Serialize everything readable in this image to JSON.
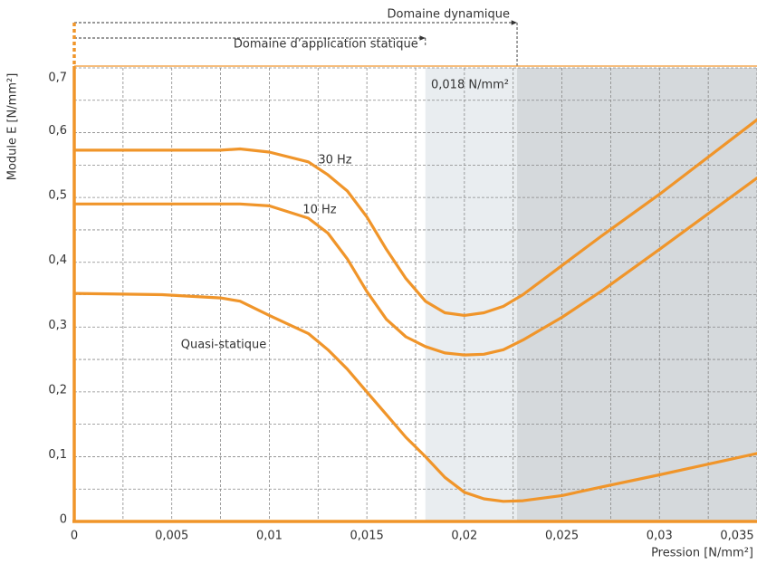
{
  "chart_data": {
    "type": "line",
    "xlabel": "Pression [N/mm²]",
    "ylabel": "Module E [N/mm²]",
    "x": [
      0,
      0.0045,
      0.0075,
      0.0085,
      0.01,
      0.012,
      0.013,
      0.014,
      0.015,
      0.016,
      0.017,
      0.018,
      0.019,
      0.02,
      0.021,
      0.022,
      0.023,
      0.025,
      0.027,
      0.03,
      0.035
    ],
    "series": [
      {
        "name": "30 Hz",
        "color": "#f0952a",
        "values": [
          0.573,
          0.573,
          0.573,
          0.575,
          0.57,
          0.555,
          0.535,
          0.51,
          0.47,
          0.42,
          0.375,
          0.34,
          0.322,
          0.318,
          0.322,
          0.332,
          0.35,
          0.395,
          0.44,
          0.505,
          0.62
        ]
      },
      {
        "name": "10 Hz",
        "color": "#f0952a",
        "values": [
          0.49,
          0.49,
          0.49,
          0.49,
          0.487,
          0.468,
          0.445,
          0.405,
          0.355,
          0.312,
          0.285,
          0.27,
          0.26,
          0.257,
          0.258,
          0.265,
          0.28,
          0.315,
          0.355,
          0.42,
          0.53
        ]
      },
      {
        "name": "Quasi-statique",
        "color": "#f0952a",
        "values": [
          0.352,
          0.35,
          0.345,
          0.34,
          0.318,
          0.29,
          0.265,
          0.235,
          0.2,
          0.165,
          0.13,
          0.1,
          0.068,
          0.045,
          0.035,
          0.031,
          0.032,
          0.04,
          0.053,
          0.072,
          0.105
        ]
      }
    ],
    "xlim": [
      0,
      0.035
    ],
    "ylim": [
      0,
      0.7
    ],
    "xticks": [
      0,
      {
        "value": 0.005,
        "label": "0,005"
      },
      {
        "value": 0.01,
        "label": "0,01"
      },
      {
        "value": 0.015,
        "label": "0,015"
      },
      {
        "value": 0.02,
        "label": "0,02"
      },
      {
        "value": 0.025,
        "label": "0,025"
      },
      {
        "value": 0.03,
        "label": "0,03"
      },
      {
        "value": 0.035,
        "label": "0,035"
      }
    ],
    "yticks": [
      0,
      {
        "value": 0.1,
        "label": "0,1"
      },
      {
        "value": 0.2,
        "label": "0,2"
      },
      {
        "value": 0.3,
        "label": "0,3"
      },
      {
        "value": 0.4,
        "label": "0,4"
      },
      {
        "value": 0.5,
        "label": "0,5"
      },
      {
        "value": 0.6,
        "label": "0,6"
      },
      {
        "value": 0.7,
        "label": "0,7"
      }
    ],
    "minor_xticks": [
      0.0025,
      0.0075,
      0.0125,
      0.0175,
      0.0225,
      0.0275,
      0.0325
    ],
    "minor_yticks": [
      0.05,
      0.15,
      0.25,
      0.35,
      0.45,
      0.55,
      0.65
    ],
    "grid": true,
    "shading": [
      {
        "xlim": [
          0.018,
          0.0227
        ],
        "color": "#e9edf0"
      },
      {
        "xlim": [
          0.0227,
          0.035
        ],
        "color": "#d5d9dc"
      }
    ],
    "ranges": [
      {
        "label": "Domaine dynamique",
        "xlim": [
          0,
          0.0227
        ]
      },
      {
        "label": "Domaine d’application statique",
        "xlim": [
          0,
          0.018
        ]
      }
    ],
    "annotation": "0,018 N/mm²"
  }
}
